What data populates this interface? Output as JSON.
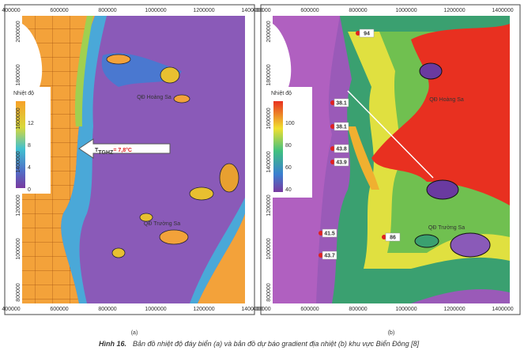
{
  "panels": [
    {
      "label": "(a)",
      "x_ticks": [
        "400000",
        "600000",
        "800000",
        "1000000",
        "1200000",
        "1400000"
      ],
      "y_ticks": [
        "2000000",
        "1800000",
        "1600000",
        "1400000",
        "1200000",
        "1000000",
        "800000"
      ],
      "legend": {
        "title": "Nhiệt độ",
        "ticks": [
          "12",
          "8",
          "4",
          "0"
        ]
      },
      "places": [
        "QĐ Hoàng Sa",
        "QĐ Trường Sa"
      ],
      "annotation": {
        "symbol": "T",
        "subscript": "TGHZ",
        "text": "= 7,8°C"
      }
    },
    {
      "label": "(b)",
      "x_ticks": [
        "400000",
        "600000",
        "800000",
        "1000000",
        "1200000",
        "1400000"
      ],
      "y_ticks": [
        "2000000",
        "1800000",
        "1600000",
        "1400000",
        "1200000",
        "1000000",
        "800000"
      ],
      "legend": {
        "title": "Nhiệt độ",
        "ticks": [
          "100",
          "80",
          "60",
          "40"
        ]
      },
      "places": [
        "QĐ Hoàng Sa",
        "QĐ Trường Sa"
      ],
      "markers": [
        "94",
        "38.1",
        "38.1",
        "43.8",
        "43.9",
        "41.5",
        "86",
        "43.7"
      ]
    }
  ],
  "caption": {
    "label": "Hình 16.",
    "text": "Bản đồ nhiệt độ đáy biển (a) và bản đồ dự báo gradient địa nhiệt (b) khu vực Biển Đông [8]"
  }
}
